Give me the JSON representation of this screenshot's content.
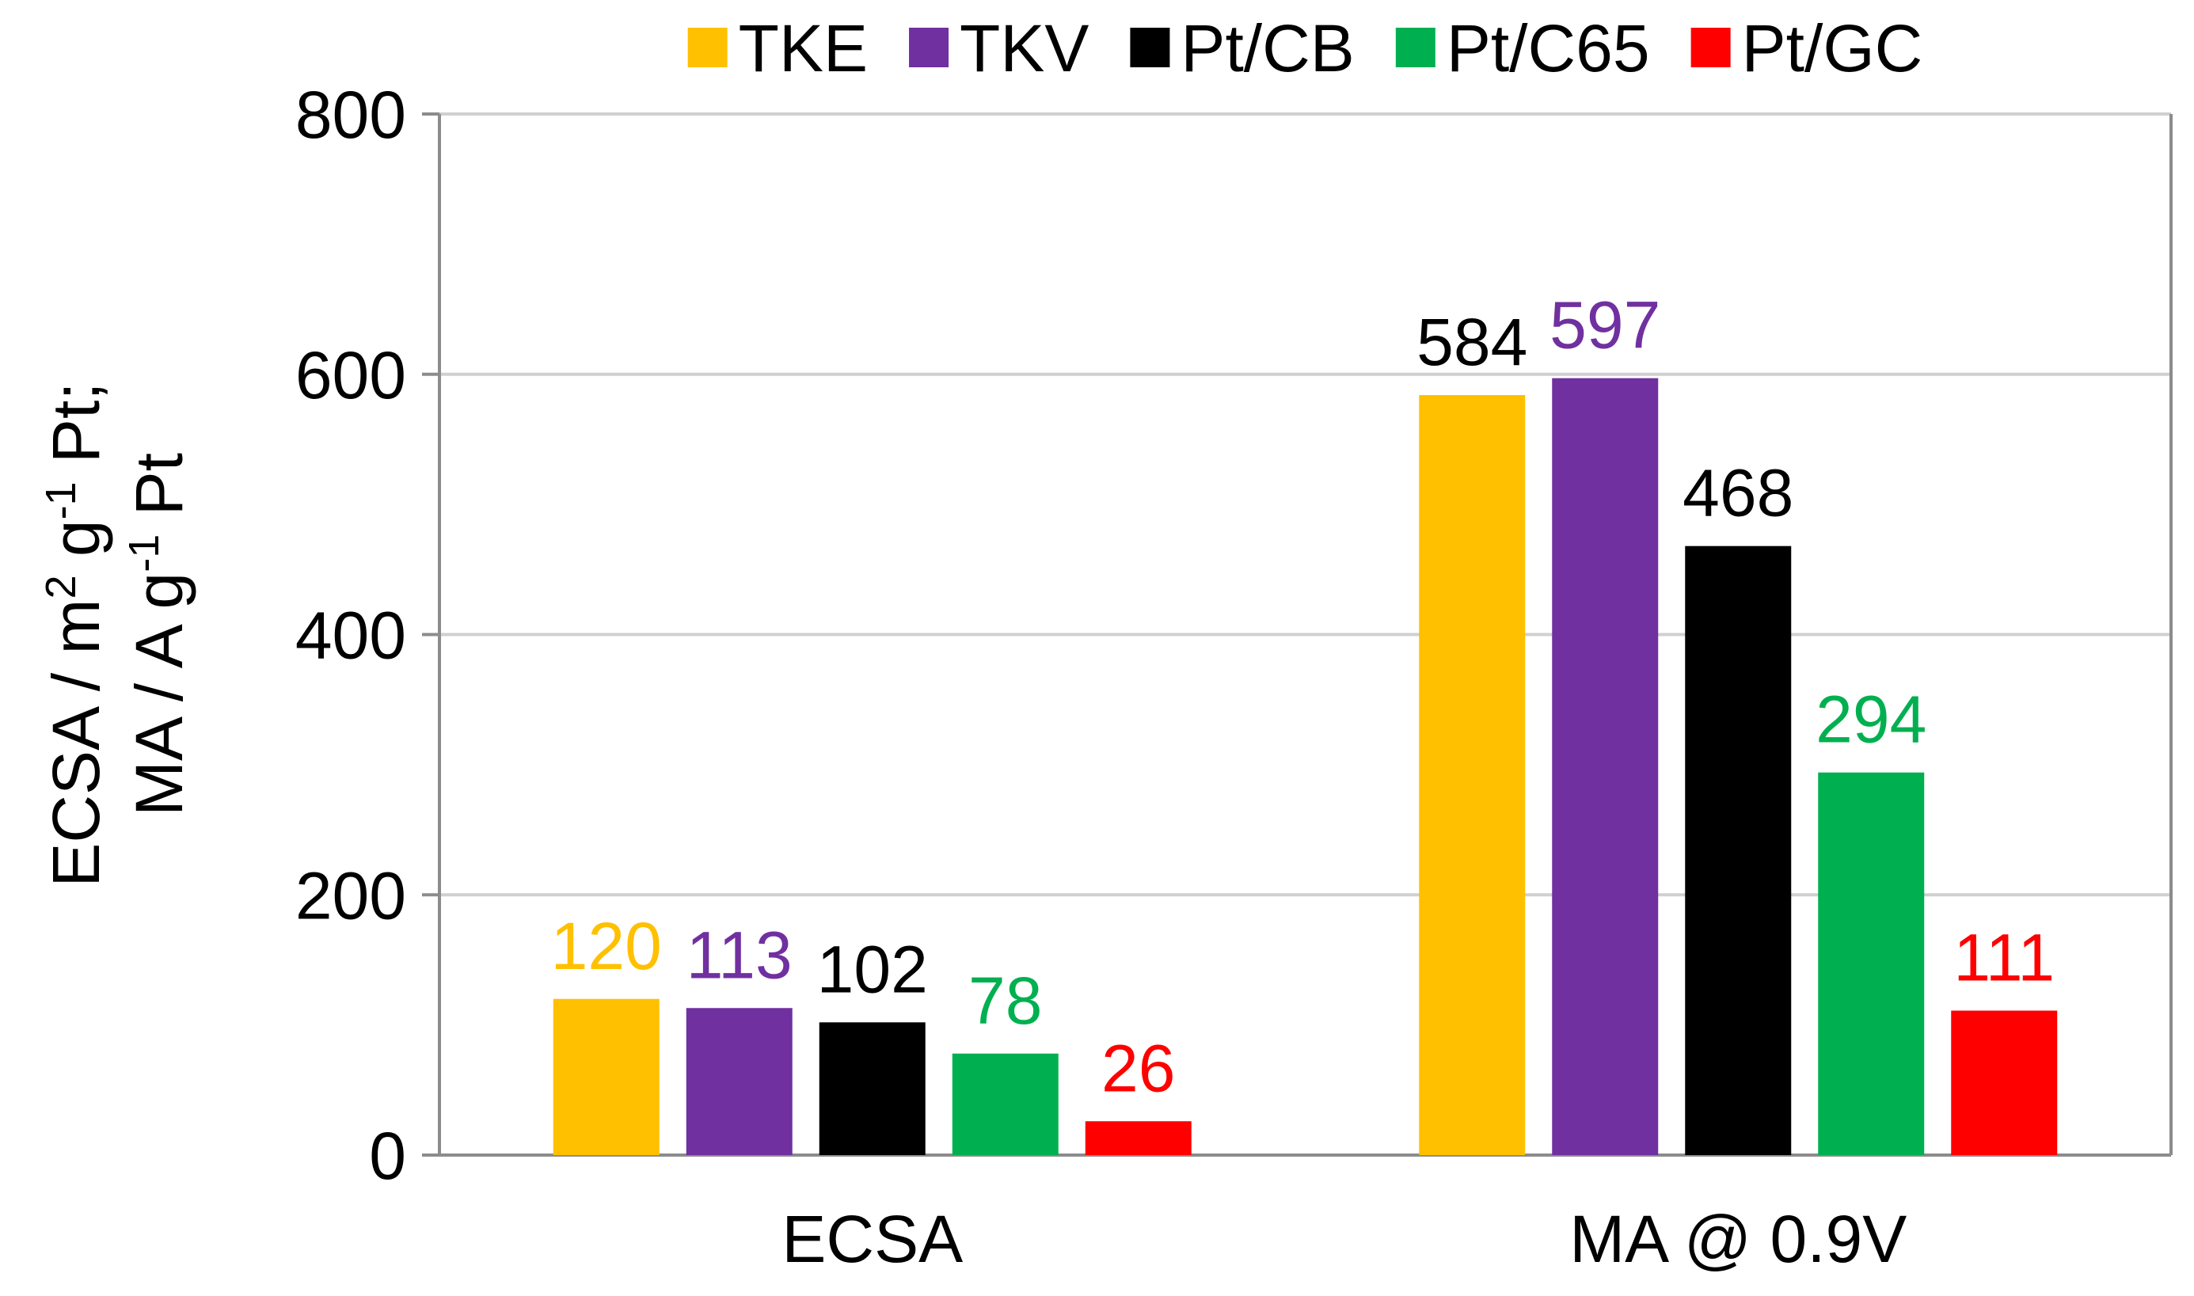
{
  "chart_data": {
    "type": "bar",
    "title": "",
    "xlabel": "",
    "ylabel_line1_parts": [
      "ECSA  / m",
      "2",
      " g",
      "-1",
      " Pt;"
    ],
    "ylabel_line2_parts": [
      "MA / A g",
      "-1",
      " Pt"
    ],
    "ylim": [
      0,
      800
    ],
    "yticks": [
      0,
      200,
      400,
      600,
      800
    ],
    "grid": true,
    "legend_position": "top",
    "categories": [
      "ECSA",
      "MA @ 0.9V"
    ],
    "series": [
      {
        "name": "TKE",
        "color": "#FFC000",
        "values": [
          120,
          584
        ],
        "label_colors": [
          "#FFC000",
          "#000000"
        ]
      },
      {
        "name": "TKV",
        "color": "#7030A0",
        "values": [
          113,
          597
        ],
        "label_colors": [
          "#7030A0",
          "#7030A0"
        ]
      },
      {
        "name": "Pt/CB",
        "color": "#000000",
        "values": [
          102,
          468
        ],
        "label_colors": [
          "#000000",
          "#000000"
        ]
      },
      {
        "name": "Pt/C65",
        "color": "#00B050",
        "values": [
          78,
          294
        ],
        "label_colors": [
          "#00B050",
          "#00B050"
        ]
      },
      {
        "name": "Pt/GC",
        "color": "#FF0000",
        "values": [
          26,
          111
        ],
        "label_colors": [
          "#FF0000",
          "#FF0000"
        ]
      }
    ]
  }
}
